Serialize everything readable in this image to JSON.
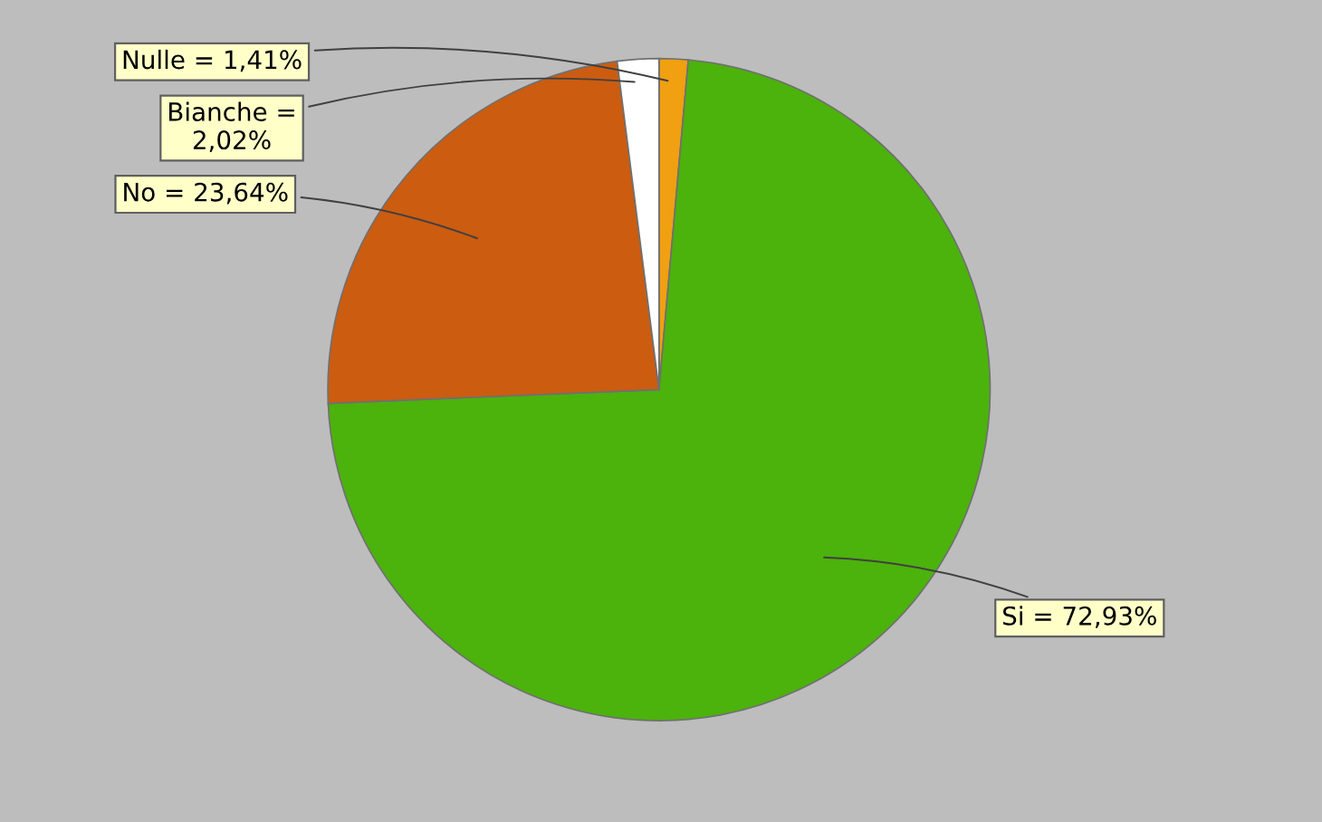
{
  "chart_data": {
    "type": "pie",
    "categories": [
      "Nulle",
      "Si",
      "No",
      "Bianche"
    ],
    "values": [
      1.41,
      72.93,
      23.64,
      2.02
    ],
    "colors": [
      "#f0a010",
      "#4cb20c",
      "#cc5c10",
      "#ffffff"
    ],
    "value_labels": [
      "= 1,41%",
      "= 72,93%",
      "= 23,64%",
      "=\n2,02%"
    ],
    "legend": false
  }
}
